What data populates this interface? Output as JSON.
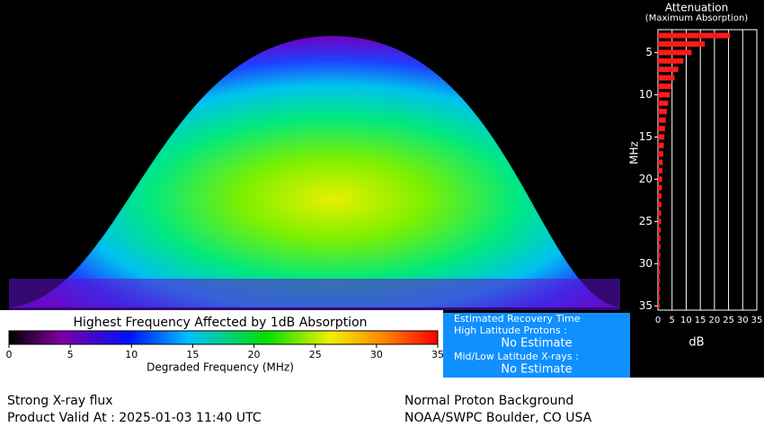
{
  "map": {
    "title": "Highest Frequency Affected by 1dB Absorption",
    "colorbar_label": "Degraded Frequency (MHz)",
    "colorbar_lim": [
      0,
      35
    ],
    "colorbar_ticks": [
      0,
      5,
      10,
      15,
      20,
      25,
      30,
      35
    ]
  },
  "chart_data": {
    "type": "bar",
    "orientation": "horizontal",
    "title": "Attenuation",
    "subtitle": "(Maximum Absorption)",
    "ylabel": "MHz",
    "xlabel": "dB",
    "y": [
      3,
      4,
      5,
      6,
      7,
      8,
      9,
      10,
      11,
      12,
      13,
      14,
      15,
      16,
      17,
      18,
      19,
      20,
      21,
      22,
      23,
      24,
      25,
      26,
      27,
      28,
      29,
      30,
      31,
      32,
      33,
      34,
      35
    ],
    "values": [
      25.5,
      16.6,
      11.9,
      9.0,
      7.2,
      5.9,
      4.9,
      4.2,
      3.6,
      3.2,
      2.8,
      2.5,
      2.3,
      2.1,
      1.9,
      1.7,
      1.6,
      1.5,
      1.4,
      1.3,
      1.2,
      1.1,
      1.1,
      1.0,
      0.9,
      0.9,
      0.8,
      0.8,
      0.8,
      0.7,
      0.7,
      0.7,
      0.6
    ],
    "color": "#ff1a1a",
    "xlim": [
      0,
      35
    ],
    "xticks": [
      0,
      5,
      10,
      15,
      20,
      25,
      30,
      35
    ],
    "ylim": [
      2.3,
      35.5
    ],
    "yticks": [
      5,
      10,
      15,
      20,
      25,
      30,
      35
    ],
    "y_inverted": true,
    "grid": true
  },
  "recovery": {
    "title": "Estimated Recovery Time",
    "high_label": "High Latitude Protons :",
    "high_value": "No Estimate",
    "low_label": "Mid/Low Latitude X-rays :",
    "low_value": "No Estimate"
  },
  "footer": {
    "left_1": "Strong X-ray flux",
    "left_2": "Product Valid At : 2025-01-03 11:40 UTC",
    "right_1": "Normal Proton Background",
    "right_2": "NOAA/SWPC Boulder, CO USA"
  }
}
